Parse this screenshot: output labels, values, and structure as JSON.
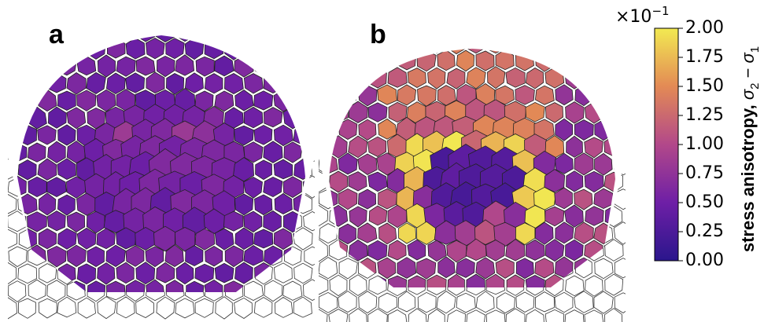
{
  "panels": [
    {
      "label": "a"
    },
    {
      "label": "b"
    }
  ],
  "colorbar": {
    "label": "stress anisotropy, ",
    "symbol_a": "σ",
    "sub_a": "2",
    "minus": " − ",
    "symbol_b": "σ",
    "sub_b": "1",
    "multiplier_base": "×10",
    "multiplier_exp": "−1",
    "lim": [
      0,
      2
    ],
    "ticks": [
      {
        "value": 0,
        "label": "0.00"
      },
      {
        "value": 0.25,
        "label": "0.25"
      },
      {
        "value": 0.5,
        "label": "0.50"
      },
      {
        "value": 0.75,
        "label": "0.75"
      },
      {
        "value": 1,
        "label": "1.00"
      },
      {
        "value": 1.25,
        "label": "1.25"
      },
      {
        "value": 1.5,
        "label": "1.50"
      },
      {
        "value": 1.75,
        "label": "1.75"
      },
      {
        "value": 2,
        "label": "2.00"
      }
    ]
  }
}
